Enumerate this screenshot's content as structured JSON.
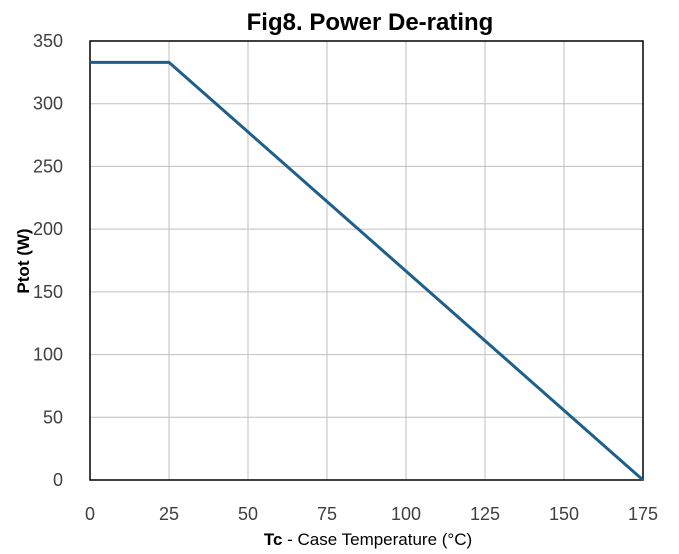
{
  "chart_data": {
    "type": "line",
    "title": "Fig8. Power De-rating",
    "xlabel_bold": "Tc",
    "xlabel_rest": " - Case Temperature (°C)",
    "ylabel": "Ptot (W)",
    "xlim": [
      0,
      175
    ],
    "ylim": [
      0,
      350
    ],
    "x_ticks": [
      0,
      25,
      50,
      75,
      100,
      125,
      150,
      175
    ],
    "y_ticks": [
      0,
      50,
      100,
      150,
      200,
      250,
      300,
      350
    ],
    "x_tick_labels": [
      "0",
      "25",
      "50",
      "75",
      "100",
      "125",
      "150",
      "175"
    ],
    "y_tick_labels": [
      "0",
      "50",
      "100",
      "150",
      "200",
      "250",
      "300",
      "350"
    ],
    "grid": true,
    "series": [
      {
        "color": "#1f5f8b",
        "x": [
          0,
          25,
          175
        ],
        "y": [
          333,
          333,
          0
        ]
      }
    ]
  }
}
